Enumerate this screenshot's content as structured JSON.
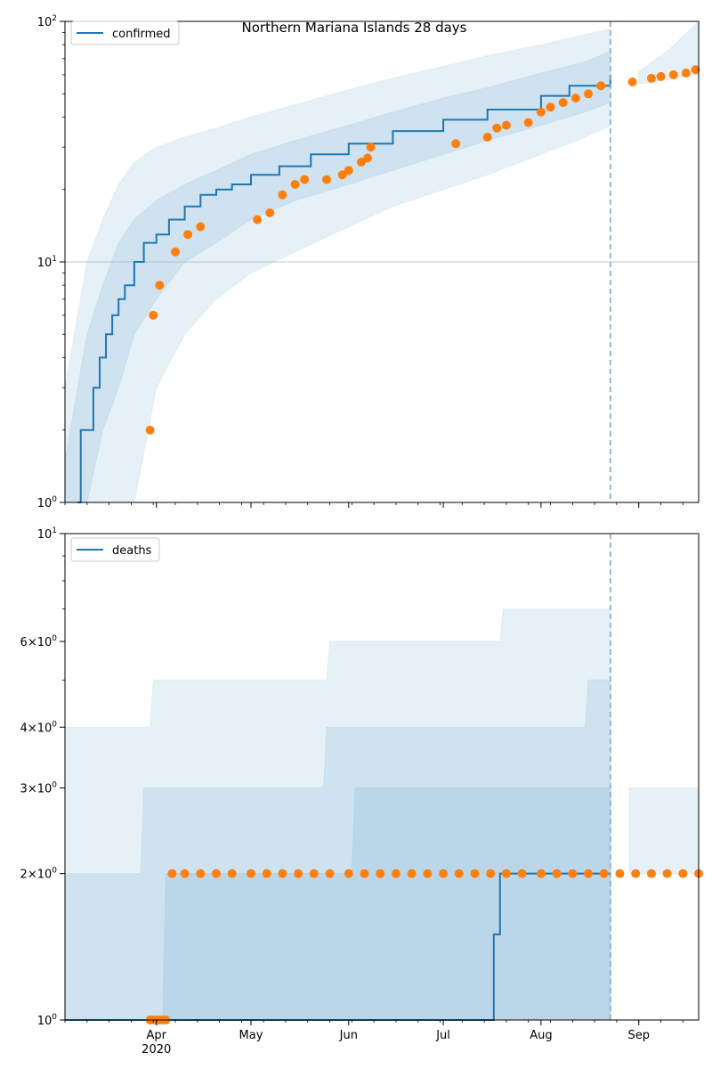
{
  "chart_data": [
    {
      "type": "line",
      "title": "Northern Mariana Islands 28 days",
      "yscale": "log",
      "ylim": [
        1,
        100
      ],
      "y_ticks": [
        {
          "value": 1,
          "label": "10",
          "sup": "0"
        },
        {
          "value": 10,
          "label": "10",
          "sup": "1"
        },
        {
          "value": 100,
          "label": "10",
          "sup": "2"
        }
      ],
      "x_range": [
        "2020-03-03",
        "2020-09-20"
      ],
      "x_ticks": [
        {
          "date": "2020-04-01",
          "label": "Apr"
        },
        {
          "date": "2020-05-01",
          "label": "May"
        },
        {
          "date": "2020-06-01",
          "label": "Jun"
        },
        {
          "date": "2020-07-01",
          "label": "Jul"
        },
        {
          "date": "2020-08-01",
          "label": "Aug"
        },
        {
          "date": "2020-09-01",
          "label": "Sep"
        }
      ],
      "x_sublabel": "2020",
      "forecast_start": "2020-08-23",
      "grid": "y",
      "legend_position": "top-left",
      "colors": {
        "model": "#1f77b4",
        "observed": "#ff7f0e",
        "band": "#1f77b4"
      },
      "series": [
        {
          "name": "confirmed",
          "kind": "line",
          "x": [
            "2020-03-07",
            "2020-03-08",
            "2020-03-10",
            "2020-03-12",
            "2020-03-14",
            "2020-03-16",
            "2020-03-18",
            "2020-03-20",
            "2020-03-22",
            "2020-03-25",
            "2020-03-28",
            "2020-04-01",
            "2020-04-05",
            "2020-04-10",
            "2020-04-15",
            "2020-04-20",
            "2020-04-25",
            "2020-05-01",
            "2020-05-10",
            "2020-05-20",
            "2020-06-01",
            "2020-06-15",
            "2020-07-01",
            "2020-07-15",
            "2020-08-01",
            "2020-08-10",
            "2020-08-23"
          ],
          "values": [
            1,
            2,
            2,
            3,
            4,
            5,
            6,
            7,
            8,
            10,
            12,
            13,
            15,
            17,
            19,
            20,
            21,
            23,
            25,
            28,
            31,
            35,
            39,
            43,
            49,
            54,
            60
          ]
        },
        {
          "name": "",
          "kind": "band",
          "x": [
            "2020-03-03",
            "2020-03-10",
            "2020-03-15",
            "2020-03-20",
            "2020-03-25",
            "2020-04-01",
            "2020-04-10",
            "2020-04-20",
            "2020-05-01",
            "2020-05-15",
            "2020-06-01",
            "2020-06-15",
            "2020-07-01",
            "2020-07-15",
            "2020-08-01",
            "2020-08-15",
            "2020-08-23"
          ],
          "lower": [
            1,
            1,
            1,
            1,
            1,
            3,
            5,
            7,
            9,
            11,
            14,
            17,
            20,
            23,
            28,
            33,
            37
          ],
          "upper": [
            3,
            10,
            15,
            21,
            26,
            30,
            33,
            36,
            40,
            45,
            52,
            58,
            65,
            72,
            80,
            88,
            93
          ]
        },
        {
          "name": "",
          "kind": "band",
          "x": [
            "2020-03-03",
            "2020-03-10",
            "2020-03-15",
            "2020-03-20",
            "2020-03-25",
            "2020-04-01",
            "2020-04-10",
            "2020-04-20",
            "2020-05-01",
            "2020-05-15",
            "2020-06-01",
            "2020-06-15",
            "2020-07-01",
            "2020-07-15",
            "2020-08-01",
            "2020-08-15",
            "2020-08-23"
          ],
          "lower": [
            1,
            1,
            2,
            3,
            5,
            7,
            10,
            12,
            15,
            18,
            21,
            24,
            28,
            32,
            37,
            42,
            46
          ],
          "upper": [
            1.5,
            5,
            8,
            12,
            15,
            18,
            21,
            24,
            28,
            32,
            37,
            42,
            48,
            53,
            61,
            68,
            75
          ]
        },
        {
          "name": "",
          "kind": "band",
          "x": [
            "2020-09-01",
            "2020-09-10",
            "2020-09-20"
          ],
          "lower": [
            55,
            57,
            60
          ],
          "upper": [
            62,
            75,
            100
          ]
        },
        {
          "name": "",
          "kind": "points",
          "x": [
            "2020-03-30",
            "2020-03-31",
            "2020-04-02",
            "2020-04-07",
            "2020-04-11",
            "2020-04-15",
            "2020-05-03",
            "2020-05-07",
            "2020-05-11",
            "2020-05-15",
            "2020-05-18",
            "2020-05-25",
            "2020-05-30",
            "2020-06-01",
            "2020-06-05",
            "2020-06-07",
            "2020-06-08",
            "2020-07-05",
            "2020-07-15",
            "2020-07-18",
            "2020-07-21",
            "2020-07-28",
            "2020-08-01",
            "2020-08-04",
            "2020-08-08",
            "2020-08-12",
            "2020-08-16",
            "2020-08-20",
            "2020-08-30",
            "2020-09-05",
            "2020-09-08",
            "2020-09-12",
            "2020-09-16",
            "2020-09-19"
          ],
          "values": [
            2,
            6,
            8,
            11,
            13,
            14,
            15,
            16,
            19,
            21,
            22,
            22,
            23,
            24,
            26,
            27,
            30,
            31,
            33,
            36,
            37,
            38,
            42,
            44,
            46,
            48,
            50,
            54,
            56,
            58,
            59,
            60,
            61,
            63
          ]
        }
      ]
    },
    {
      "type": "line",
      "title": "",
      "yscale": "log",
      "ylim": [
        1,
        10
      ],
      "y_ticks": [
        {
          "value": 1,
          "label": "10",
          "sup": "0"
        },
        {
          "value": 2,
          "label": "2×10",
          "sup": "0"
        },
        {
          "value": 3,
          "label": "3×10",
          "sup": "0"
        },
        {
          "value": 4,
          "label": "4×10",
          "sup": "0"
        },
        {
          "value": 6,
          "label": "6×10",
          "sup": "0"
        },
        {
          "value": 10,
          "label": "10",
          "sup": "1"
        }
      ],
      "x_range": [
        "2020-03-03",
        "2020-09-20"
      ],
      "x_ticks": [
        {
          "date": "2020-04-01",
          "label": "Apr"
        },
        {
          "date": "2020-05-01",
          "label": "May"
        },
        {
          "date": "2020-06-01",
          "label": "Jun"
        },
        {
          "date": "2020-07-01",
          "label": "Jul"
        },
        {
          "date": "2020-08-01",
          "label": "Aug"
        },
        {
          "date": "2020-09-01",
          "label": "Sep"
        }
      ],
      "x_sublabel": "2020",
      "forecast_start": "2020-08-23",
      "grid": "none",
      "legend_position": "top-left",
      "colors": {
        "model": "#1f77b4",
        "observed": "#ff7f0e",
        "band": "#1f77b4"
      },
      "series": [
        {
          "name": "deaths",
          "kind": "line",
          "x": [
            "2020-03-03",
            "2020-07-16",
            "2020-07-17",
            "2020-07-18",
            "2020-07-19",
            "2020-07-20",
            "2020-08-23"
          ],
          "values": [
            1,
            1,
            1.5,
            1.5,
            2,
            2,
            2
          ]
        },
        {
          "name": "",
          "kind": "band",
          "x": [
            "2020-03-03",
            "2020-03-30",
            "2020-03-31",
            "2020-05-25",
            "2020-05-26",
            "2020-07-19",
            "2020-07-20",
            "2020-08-23"
          ],
          "lower": [
            1,
            1,
            1,
            1,
            1,
            1,
            1,
            1
          ],
          "upper": [
            4,
            4,
            5,
            5,
            6,
            6,
            7,
            7
          ]
        },
        {
          "name": "",
          "kind": "band",
          "x": [
            "2020-03-03",
            "2020-03-27",
            "2020-03-28",
            "2020-05-24",
            "2020-05-25",
            "2020-08-15",
            "2020-08-16",
            "2020-08-23"
          ],
          "lower": [
            1,
            1,
            1,
            1,
            1,
            1,
            1,
            1
          ],
          "upper": [
            2,
            2,
            3,
            3,
            4,
            4,
            5,
            5
          ]
        },
        {
          "name": "",
          "kind": "band",
          "x": [
            "2020-03-03",
            "2020-04-03",
            "2020-04-04",
            "2020-06-02",
            "2020-06-03",
            "2020-08-23"
          ],
          "lower": [
            1,
            1,
            1,
            1,
            1,
            1
          ],
          "upper": [
            1,
            1,
            2,
            2,
            3,
            3
          ]
        },
        {
          "name": "",
          "kind": "band",
          "x": [
            "2020-08-29",
            "2020-09-20"
          ],
          "lower": [
            2,
            2
          ],
          "upper": [
            3,
            3
          ]
        },
        {
          "name": "",
          "kind": "points",
          "x": [
            "2020-03-30",
            "2020-03-31",
            "2020-04-01",
            "2020-04-02",
            "2020-04-03",
            "2020-04-04",
            "2020-04-06",
            "2020-04-10",
            "2020-04-15",
            "2020-04-20",
            "2020-04-25",
            "2020-05-01",
            "2020-05-06",
            "2020-05-11",
            "2020-05-16",
            "2020-05-21",
            "2020-05-26",
            "2020-06-01",
            "2020-06-06",
            "2020-06-11",
            "2020-06-16",
            "2020-06-21",
            "2020-06-26",
            "2020-07-01",
            "2020-07-06",
            "2020-07-11",
            "2020-07-16",
            "2020-07-21",
            "2020-07-26",
            "2020-08-01",
            "2020-08-06",
            "2020-08-11",
            "2020-08-16",
            "2020-08-21",
            "2020-08-26",
            "2020-08-31",
            "2020-09-05",
            "2020-09-10",
            "2020-09-15",
            "2020-09-20"
          ],
          "values": [
            1,
            1,
            1,
            1,
            1,
            1,
            2,
            2,
            2,
            2,
            2,
            2,
            2,
            2,
            2,
            2,
            2,
            2,
            2,
            2,
            2,
            2,
            2,
            2,
            2,
            2,
            2,
            2,
            2,
            2,
            2,
            2,
            2,
            2,
            2,
            2,
            2,
            2,
            2,
            2
          ]
        }
      ]
    }
  ]
}
